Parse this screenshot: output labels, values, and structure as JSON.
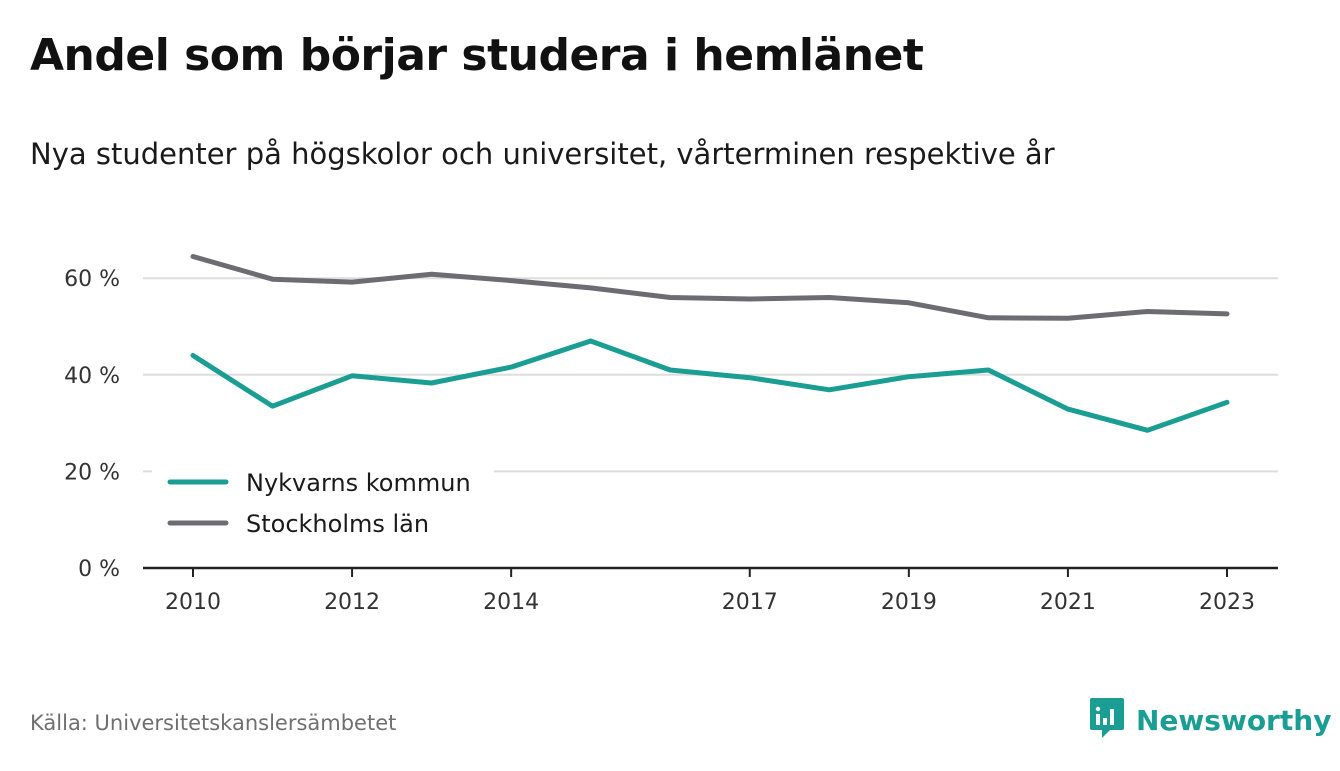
{
  "title": "Andel som börjar studera i hemlänet",
  "subtitle": "Nya studenter på högskolor och universitet, vårterminen respektive år",
  "source": "Källa: Universitetskanslersämbetet",
  "brand": {
    "name": "Newsworthy",
    "icon": "newsworthy-logo-icon",
    "color": "#1a9e93"
  },
  "chart_data": {
    "type": "line",
    "x": [
      2010,
      2011,
      2012,
      2013,
      2014,
      2015,
      2016,
      2017,
      2018,
      2019,
      2020,
      2021,
      2022,
      2023
    ],
    "x_tick_labels": [
      "2010",
      "2012",
      "2014",
      "2017",
      "2019",
      "2021",
      "2023"
    ],
    "y_ticks": [
      0,
      20,
      40,
      60
    ],
    "y_tick_labels": [
      "0 %",
      "20 %",
      "40 %",
      "60 %"
    ],
    "ylim": [
      0,
      70
    ],
    "grid": true,
    "legend_position": "bottom-left",
    "series": [
      {
        "name": "Nykvarns kommun",
        "color": "#1a9e93",
        "values": [
          44.0,
          33.5,
          39.8,
          38.3,
          41.6,
          47.0,
          41.0,
          39.4,
          36.9,
          39.6,
          41.0,
          32.9,
          28.5,
          34.3
        ]
      },
      {
        "name": "Stockholms län",
        "color": "#6e6c73",
        "values": [
          64.5,
          59.8,
          59.2,
          60.8,
          59.5,
          58.0,
          56.0,
          55.7,
          56.0,
          54.9,
          51.8,
          51.7,
          53.1,
          52.6
        ]
      }
    ]
  }
}
